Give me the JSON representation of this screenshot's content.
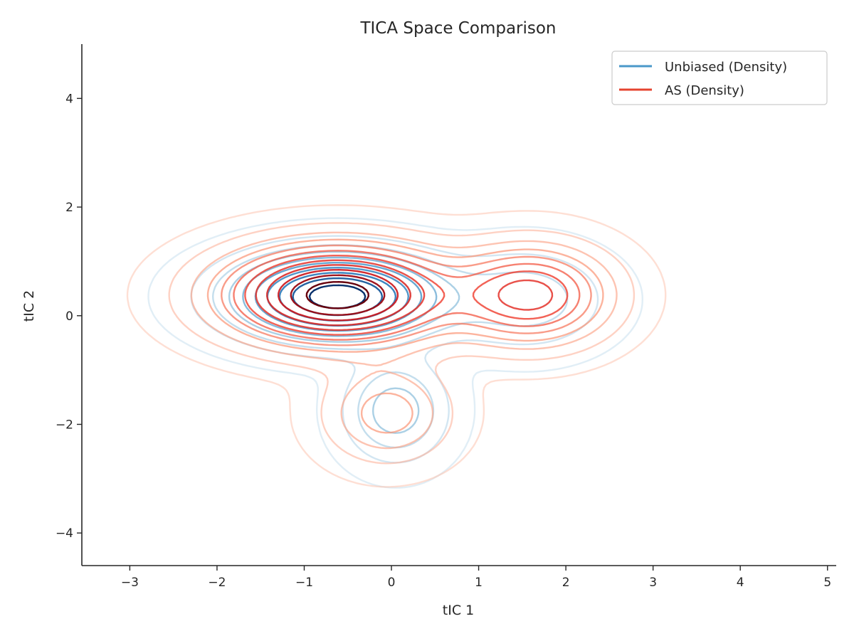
{
  "chart_data": {
    "type": "contour",
    "title": "TICA Space Comparison",
    "xlabel": "tIC 1",
    "ylabel": "tIC 2",
    "xlim": [
      -3.55,
      5.1
    ],
    "ylim": [
      -4.6,
      5.0
    ],
    "xticks": [
      -3,
      -2,
      -1,
      0,
      1,
      2,
      3,
      4,
      5
    ],
    "yticks": [
      -4,
      -2,
      0,
      2,
      4
    ],
    "xtick_labels": [
      "−3",
      "−2",
      "−1",
      "0",
      "1",
      "2",
      "3",
      "4",
      "5"
    ],
    "ytick_labels": [
      "−4",
      "−2",
      "0",
      "2",
      "4"
    ],
    "grid": false,
    "legend": {
      "position": "top-right",
      "entries": [
        "Unbiased (Density)",
        "AS (Density)"
      ]
    },
    "series": [
      {
        "name": "Unbiased (Density)",
        "colormap": "Blues",
        "legend_color": "#4a98c9",
        "levels": 10,
        "components": [
          {
            "weight": 1.0,
            "mean": [
              -0.62,
              0.35
            ],
            "std": [
              0.72,
              0.48
            ]
          },
          {
            "weight": 0.3,
            "mean": [
              0.05,
              -1.75
            ],
            "std": [
              0.35,
              0.55
            ]
          },
          {
            "weight": 0.2,
            "mean": [
              1.55,
              0.3
            ],
            "std": [
              0.55,
              0.55
            ]
          }
        ]
      },
      {
        "name": "AS (Density)",
        "colormap": "Reds",
        "legend_color": "#e5432f",
        "levels": 12,
        "components": [
          {
            "weight": 1.0,
            "mean": [
              -0.62,
              0.38
            ],
            "std": [
              0.8,
              0.55
            ]
          },
          {
            "weight": 0.55,
            "mean": [
              1.6,
              0.38
            ],
            "std": [
              0.55,
              0.55
            ]
          },
          {
            "weight": 0.22,
            "mean": [
              -0.05,
              -1.8
            ],
            "std": [
              0.45,
              0.55
            ]
          }
        ]
      }
    ]
  }
}
